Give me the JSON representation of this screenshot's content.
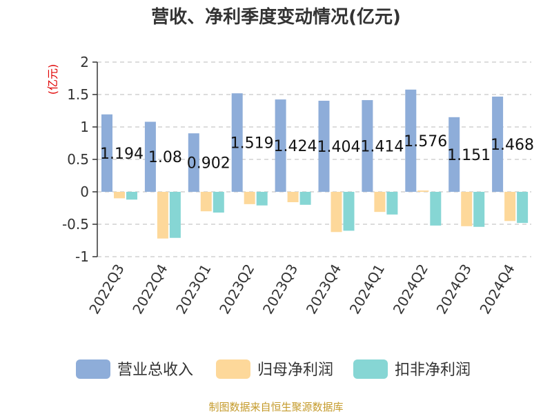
{
  "chart_data": {
    "type": "bar",
    "title": "营收、净利季度变动情况(亿元)",
    "unit_label": "(亿元)",
    "categories": [
      "2022Q3",
      "2022Q4",
      "2023Q1",
      "2023Q2",
      "2023Q3",
      "2023Q4",
      "2024Q1",
      "2024Q2",
      "2024Q3",
      "2024Q4"
    ],
    "series": [
      {
        "name": "营业总收入",
        "color": "#8eadd9",
        "values": [
          1.194,
          1.08,
          0.902,
          1.519,
          1.424,
          1.404,
          1.414,
          1.576,
          1.151,
          1.468
        ]
      },
      {
        "name": "归母净利润",
        "color": "#fdd89a",
        "values": [
          -0.1,
          -0.72,
          -0.3,
          -0.19,
          -0.16,
          -0.62,
          -0.31,
          0.02,
          -0.53,
          -0.45
        ]
      },
      {
        "name": "扣非净利润",
        "color": "#86d6d4",
        "values": [
          -0.12,
          -0.71,
          -0.32,
          -0.21,
          -0.2,
          -0.6,
          -0.35,
          -0.52,
          -0.54,
          -0.48
        ]
      }
    ],
    "data_labels": [
      "1.194",
      "1.08",
      "0.902",
      "1.519",
      "1.424",
      "1.404",
      "1.414",
      "1.576",
      "1.151",
      "1.468"
    ],
    "ylim": [
      -1,
      2
    ],
    "yticks": [
      -1,
      -0.5,
      0,
      0.5,
      1,
      1.5,
      2
    ],
    "ytick_labels": [
      "-1",
      "-0.5",
      "0",
      "0.5",
      "1",
      "1.5",
      "2"
    ],
    "grid": true,
    "legend_position": "bottom"
  },
  "source_text": "制图数据来自恒生聚源数据库"
}
